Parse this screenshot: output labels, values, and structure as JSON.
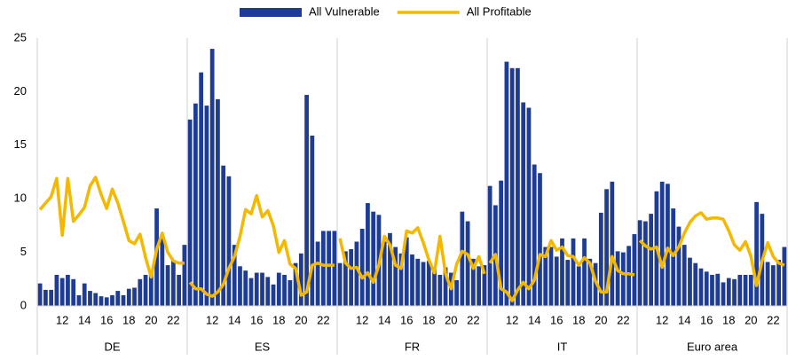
{
  "chart_data": {
    "type": "bar",
    "groups": [
      "DE",
      "ES",
      "FR",
      "IT",
      "Euro area"
    ],
    "categories": [
      null,
      null,
      null,
      null,
      "12",
      null,
      null,
      null,
      "14",
      null,
      null,
      null,
      "16",
      null,
      null,
      null,
      "18",
      null,
      null,
      null,
      "20",
      null,
      null,
      null,
      "22",
      null,
      null
    ],
    "series": [
      {
        "name": "All Vulnerable",
        "type": "bar",
        "color": "#1f3c94",
        "values": [
          [
            2.1,
            1.5,
            1.5,
            2.9,
            2.6,
            2.9,
            2.5,
            1.0,
            2.1,
            1.4,
            1.2,
            0.9,
            0.8,
            1.0,
            1.4,
            1.0,
            1.6,
            1.7,
            2.5,
            2.9,
            3.0,
            9.1,
            6.5,
            3.8,
            4.2,
            2.9,
            5.7
          ],
          [
            17.4,
            18.9,
            21.8,
            18.7,
            24.0,
            19.3,
            13.1,
            12.1,
            5.7,
            3.7,
            3.3,
            2.6,
            3.1,
            3.1,
            2.7,
            2.0,
            3.1,
            2.9,
            2.4,
            4.0,
            4.9,
            19.7,
            15.9,
            6.0,
            7.0,
            7.0,
            7.0
          ],
          [
            4.0,
            5.1,
            5.3,
            6.0,
            7.2,
            9.6,
            8.8,
            8.5,
            6.0,
            6.8,
            5.5,
            4.9,
            6.4,
            4.8,
            4.4,
            4.1,
            4.2,
            3.4,
            2.9,
            3.6,
            3.1,
            2.4,
            8.8,
            7.9,
            4.4,
            3.7,
            3.8
          ],
          [
            11.2,
            9.4,
            11.7,
            22.8,
            22.2,
            22.2,
            19.0,
            18.5,
            13.2,
            12.4,
            5.5,
            5.5,
            4.6,
            6.3,
            4.3,
            6.3,
            3.7,
            6.3,
            4.4,
            4.0,
            8.7,
            10.9,
            11.6,
            5.1,
            5.0,
            5.6,
            6.7
          ],
          [
            8.0,
            7.9,
            8.6,
            10.7,
            11.6,
            11.4,
            9.1,
            7.4,
            5.7,
            4.5,
            4.0,
            3.5,
            3.2,
            2.9,
            3.0,
            2.2,
            2.6,
            2.5,
            2.9,
            2.9,
            2.9,
            9.7,
            8.6,
            4.1,
            3.8,
            4.3,
            5.5
          ]
        ]
      },
      {
        "name": "All Profitable",
        "type": "line",
        "color": "#f5b800",
        "values": [
          [
            9.0,
            9.6,
            10.2,
            11.9,
            6.6,
            11.9,
            7.9,
            8.5,
            9.2,
            11.2,
            12.0,
            10.4,
            9.1,
            10.9,
            9.6,
            7.9,
            6.1,
            5.8,
            6.7,
            4.5,
            2.7,
            5.3,
            6.8,
            5.0,
            4.2,
            4.0,
            4.0
          ],
          [
            2.2,
            1.6,
            1.6,
            1.1,
            0.9,
            1.3,
            2.0,
            3.5,
            4.6,
            6.5,
            9.0,
            8.6,
            10.3,
            8.3,
            8.9,
            7.5,
            5.0,
            6.1,
            3.9,
            3.5,
            1.0,
            1.3,
            3.8,
            4.0,
            3.8,
            3.8,
            3.8
          ],
          [
            6.3,
            4.0,
            3.5,
            3.6,
            2.6,
            3.1,
            2.2,
            3.8,
            6.5,
            5.7,
            3.8,
            3.5,
            7.0,
            6.8,
            7.3,
            5.9,
            4.3,
            3.1,
            6.5,
            3.0,
            1.6,
            3.9,
            5.1,
            4.8,
            3.5,
            4.6,
            3.0
          ],
          [
            4.0,
            4.8,
            1.6,
            1.3,
            0.5,
            1.5,
            2.2,
            1.6,
            2.4,
            4.8,
            4.6,
            6.1,
            5.2,
            5.5,
            4.7,
            4.6,
            3.8,
            4.5,
            4.0,
            2.3,
            1.3,
            1.3,
            4.6,
            3.3,
            3.0,
            3.0,
            2.9
          ],
          [
            6.1,
            5.6,
            5.3,
            5.5,
            3.6,
            5.4,
            4.7,
            5.5,
            6.8,
            7.8,
            8.4,
            8.7,
            8.1,
            8.2,
            8.2,
            8.1,
            7.0,
            5.7,
            5.2,
            6.0,
            4.6,
            1.9,
            4.2,
            5.9,
            4.6,
            4.0,
            3.8
          ]
        ]
      }
    ],
    "ylim": [
      0,
      25
    ],
    "yticks": [
      0,
      5,
      10,
      15,
      20,
      25
    ],
    "grid": false,
    "legend": "top"
  }
}
